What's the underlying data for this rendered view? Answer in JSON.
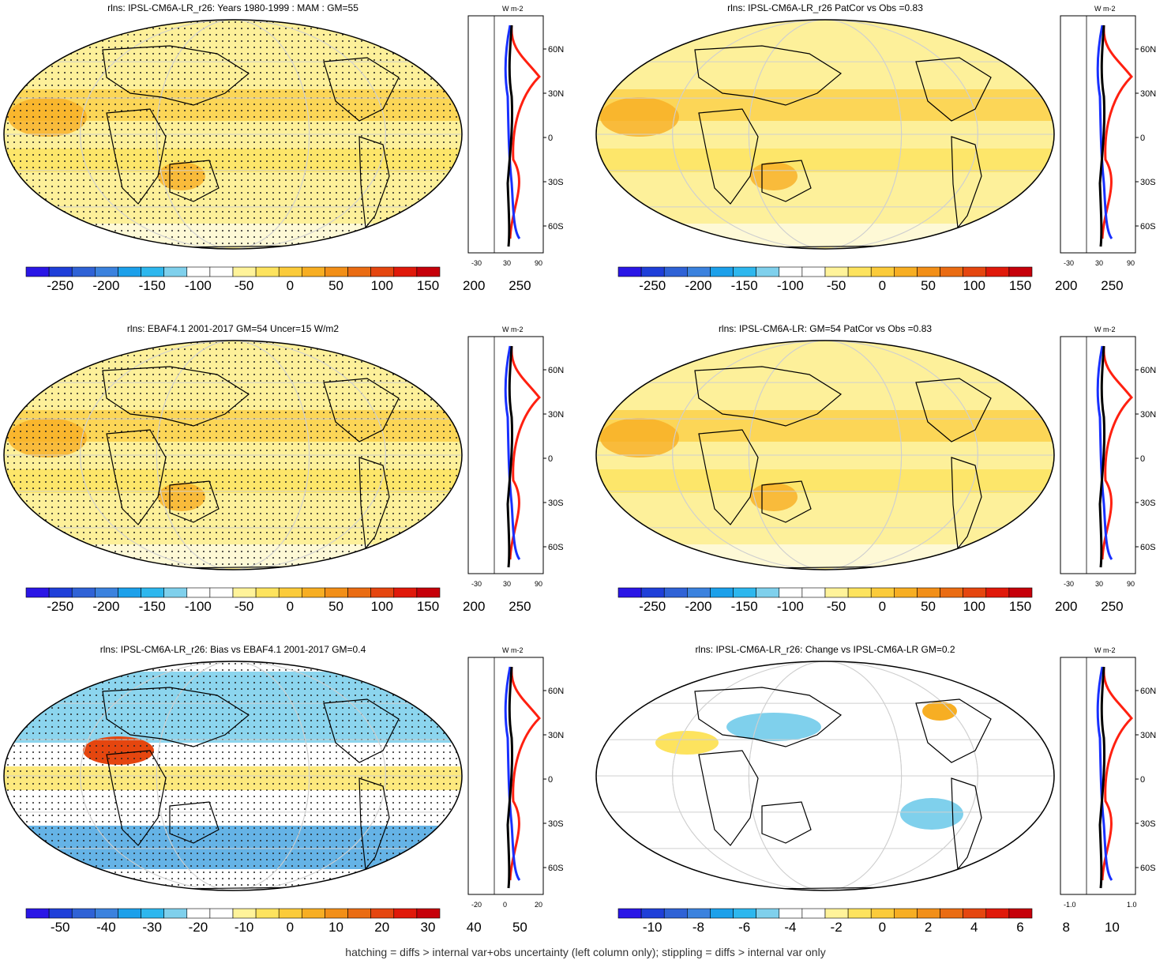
{
  "figure": {
    "footnote": "hatching = diffs > internal var+obs uncertainty (left column only); stippling = diffs > internal var only"
  },
  "palette": [
    "#2a16e6",
    "#1f3fd9",
    "#2f62d6",
    "#3b82de",
    "#1ca0ea",
    "#2db7ee",
    "#7fd0ec",
    "#ffffff",
    "#ffffff",
    "#fff39a",
    "#fde35e",
    "#fbcb3a",
    "#f7ae23",
    "#f28f18",
    "#ea6c13",
    "#e5460f",
    "#e0190a",
    "#c6000a"
  ],
  "chart_data": [
    {
      "type": "heatmap",
      "panel": "mean-model",
      "title": "rlns: IPSL-CM6A-LR_r26: Years 1980-1999 : MAM : GM=55",
      "colorbar": {
        "labels": [
          "-250",
          "-200",
          "-150",
          "-100",
          "-50",
          "0",
          "50",
          "100",
          "150",
          "200",
          "250"
        ]
      },
      "profile": {
        "unit": "W m-2",
        "xticks": [
          "-30",
          "30",
          "90"
        ],
        "yticks": [
          "60N",
          "30N",
          "0",
          "30S",
          "60S"
        ]
      }
    },
    {
      "type": "heatmap",
      "panel": "mean-model-patcor",
      "title": "rlns: IPSL-CM6A-LR_r26 PatCor vs Obs =0.83",
      "colorbar": {
        "labels": [
          "-250",
          "-200",
          "-150",
          "-100",
          "-50",
          "0",
          "50",
          "100",
          "150",
          "200",
          "250"
        ]
      },
      "profile": {
        "unit": "W m-2",
        "xticks": [
          "-30",
          "30",
          "90"
        ],
        "yticks": [
          "60N",
          "30N",
          "0",
          "30S",
          "60S"
        ]
      }
    },
    {
      "type": "heatmap",
      "panel": "obs",
      "title": "rlns: EBAF4.1 2001-2017 GM=54 Uncer=15 W/m2",
      "colorbar": {
        "labels": [
          "-250",
          "-200",
          "-150",
          "-100",
          "-50",
          "0",
          "50",
          "100",
          "150",
          "200",
          "250"
        ]
      },
      "profile": {
        "unit": "W m-2",
        "xticks": [
          "-30",
          "30",
          "90"
        ],
        "yticks": [
          "60N",
          "30N",
          "0",
          "30S",
          "60S"
        ]
      }
    },
    {
      "type": "heatmap",
      "panel": "ensemble",
      "title": "rlns: IPSL-CM6A-LR: GM=54 PatCor vs Obs =0.83",
      "colorbar": {
        "labels": [
          "-250",
          "-200",
          "-150",
          "-100",
          "-50",
          "0",
          "50",
          "100",
          "150",
          "200",
          "250"
        ]
      },
      "profile": {
        "unit": "W m-2",
        "xticks": [
          "-30",
          "30",
          "90"
        ],
        "yticks": [
          "60N",
          "30N",
          "0",
          "30S",
          "60S"
        ]
      }
    },
    {
      "type": "heatmap",
      "panel": "bias",
      "title": "rlns: IPSL-CM6A-LR_r26: Bias vs EBAF4.1 2001-2017 GM=0.4",
      "colorbar": {
        "labels": [
          "-50",
          "-40",
          "-30",
          "-20",
          "-10",
          "0",
          "10",
          "20",
          "30",
          "40",
          "50"
        ]
      },
      "profile": {
        "unit": "W m-2",
        "xticks": [
          "-20",
          "0",
          "20"
        ],
        "yticks": [
          "60N",
          "30N",
          "0",
          "30S",
          "60S"
        ]
      }
    },
    {
      "type": "heatmap",
      "panel": "change",
      "title": "rlns: IPSL-CM6A-LR_r26: Change vs IPSL-CM6A-LR GM=0.2",
      "colorbar": {
        "labels": [
          "-10",
          "-8",
          "-6",
          "-4",
          "-2",
          "0",
          "2",
          "4",
          "6",
          "8",
          "10"
        ]
      },
      "profile": {
        "unit": "W m-2",
        "xticks": [
          "-1.0",
          "1.0"
        ],
        "yticks": [
          "60N",
          "30N",
          "0",
          "30S",
          "60S"
        ]
      }
    }
  ]
}
